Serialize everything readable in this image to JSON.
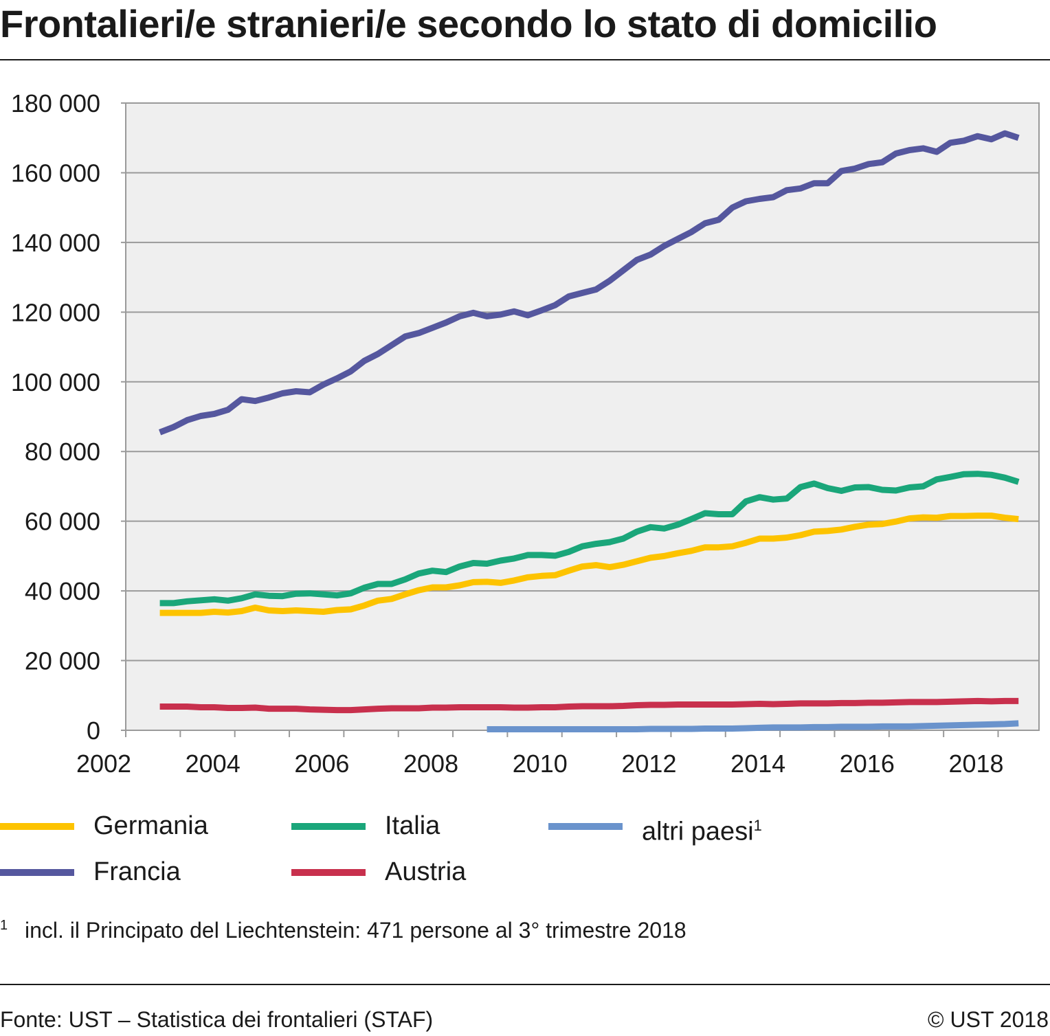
{
  "title": "Frontalieri/e stranieri/e secondo lo stato di domicilio",
  "footnote": {
    "mark": "1",
    "text": "incl. il Principato del Liechtenstein: 471 persone al 3° trimestre 2018"
  },
  "source": "Fonte: UST – Statistica dei frontalieri (STAF)",
  "copyright": "© UST 2018",
  "colors": {
    "Germania": "#fdc300",
    "Italia": "#1aa67a",
    "altri paesi": "#6a93cc",
    "Francia": "#55579e",
    "Austria": "#c8304d",
    "plot_background": "#efefef",
    "grid": "#9a9a9a"
  },
  "chart_data": {
    "type": "line",
    "title": "Frontalieri/e stranieri/e secondo lo stato di domicilio",
    "xlabel": "",
    "ylabel": "",
    "x_unit": "quarter",
    "x_start": "2002 Q3",
    "x_end": "2018 Q3",
    "xlim": [
      2002,
      2018.75
    ],
    "ylim": [
      0,
      180000
    ],
    "x_ticks": [
      2002,
      2004,
      2006,
      2008,
      2010,
      2012,
      2014,
      2016,
      2018
    ],
    "y_ticks": [
      0,
      20000,
      40000,
      60000,
      80000,
      100000,
      120000,
      140000,
      160000,
      180000
    ],
    "y_tick_labels": [
      "0",
      "20 000",
      "40 000",
      "60 000",
      "80 000",
      "100 000",
      "120 000",
      "140 000",
      "160 000",
      "180 000"
    ],
    "grid": true,
    "legend_position": "bottom",
    "series": [
      {
        "name": "Francia",
        "values": [
          85500,
          87000,
          89000,
          90200,
          90800,
          92000,
          95000,
          94500,
          95500,
          96700,
          97300,
          97000,
          99200,
          101000,
          103000,
          106000,
          108000,
          110500,
          113000,
          114000,
          115500,
          117000,
          118800,
          119800,
          118800,
          119300,
          120200,
          119100,
          120500,
          122000,
          124500,
          125500,
          126500,
          129000,
          132000,
          135000,
          136500,
          139000,
          141000,
          143000,
          145500,
          146500,
          150000,
          151800,
          152500,
          153000,
          155000,
          155500,
          157000,
          157000,
          160500,
          161200,
          162500,
          163000,
          165500,
          166500,
          167000,
          166000,
          168600,
          169200,
          170500,
          169600,
          171300,
          170000
        ]
      },
      {
        "name": "Italia",
        "values": [
          36500,
          36500,
          37000,
          37300,
          37600,
          37200,
          37900,
          39000,
          38600,
          38500,
          39200,
          39300,
          39000,
          38700,
          39300,
          40900,
          42000,
          42000,
          43300,
          45000,
          45800,
          45400,
          47000,
          48000,
          47800,
          48700,
          49300,
          50300,
          50300,
          50100,
          51200,
          52800,
          53500,
          54000,
          55000,
          57000,
          58300,
          57900,
          59000,
          60600,
          62300,
          62000,
          62000,
          65700,
          66900,
          66200,
          66500,
          69800,
          70800,
          69500,
          68700,
          69700,
          69800,
          69000,
          68800,
          69700,
          70000,
          72000,
          72700,
          73500,
          73600,
          73300,
          72500,
          71300
        ]
      },
      {
        "name": "Germania",
        "values": [
          33700,
          33700,
          33700,
          33700,
          34000,
          33800,
          34200,
          35200,
          34400,
          34200,
          34400,
          34200,
          34000,
          34500,
          34700,
          35800,
          37200,
          37700,
          39000,
          40200,
          41000,
          41000,
          41600,
          42500,
          42600,
          42300,
          43000,
          43900,
          44300,
          44500,
          45800,
          47000,
          47400,
          46800,
          47500,
          48500,
          49500,
          50000,
          50800,
          51500,
          52500,
          52500,
          52800,
          53800,
          55000,
          55000,
          55300,
          56000,
          57000,
          57200,
          57600,
          58400,
          59000,
          59200,
          59900,
          60800,
          61100,
          61000,
          61500,
          61500,
          61600,
          61600,
          61000,
          60600
        ]
      },
      {
        "name": "Austria",
        "values": [
          6800,
          6800,
          6800,
          6600,
          6600,
          6400,
          6400,
          6500,
          6200,
          6200,
          6200,
          6000,
          5900,
          5800,
          5800,
          6000,
          6200,
          6300,
          6300,
          6300,
          6500,
          6500,
          6600,
          6600,
          6600,
          6600,
          6500,
          6500,
          6600,
          6600,
          6800,
          6900,
          6900,
          6900,
          7000,
          7200,
          7300,
          7300,
          7400,
          7400,
          7400,
          7400,
          7400,
          7500,
          7600,
          7500,
          7600,
          7700,
          7700,
          7700,
          7800,
          7800,
          7900,
          7900,
          8000,
          8100,
          8100,
          8100,
          8200,
          8300,
          8400,
          8300,
          8400,
          8400
        ]
      },
      {
        "name": "altri paesi",
        "name_superscript": "1",
        "values": [
          null,
          null,
          null,
          null,
          null,
          null,
          null,
          null,
          null,
          null,
          null,
          null,
          null,
          null,
          null,
          null,
          null,
          null,
          null,
          null,
          null,
          null,
          null,
          null,
          300,
          300,
          300,
          300,
          300,
          300,
          300,
          300,
          300,
          300,
          300,
          300,
          400,
          400,
          400,
          400,
          500,
          500,
          500,
          600,
          700,
          800,
          800,
          800,
          900,
          900,
          1000,
          1000,
          1000,
          1100,
          1100,
          1100,
          1200,
          1300,
          1400,
          1500,
          1600,
          1700,
          1800,
          2000
        ]
      }
    ]
  }
}
